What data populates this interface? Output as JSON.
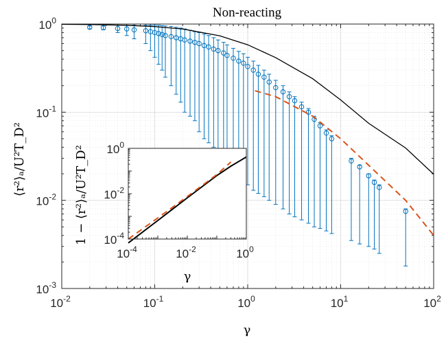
{
  "chart_data": [
    {
      "type": "scatter",
      "title": "Non-reacting",
      "xlabel": "γ",
      "ylabel": "⟨r²⟩ₐ/U²T_D²",
      "xscale": "log",
      "yscale": "log",
      "xlim": [
        0.01,
        100
      ],
      "ylim": [
        0.001,
        1
      ],
      "x_ticks": [
        "10^-2",
        "10^-1",
        "10^0",
        "10^1",
        "10^2"
      ],
      "y_ticks": [
        "10^-3",
        "10^-2",
        "10^-1",
        "10^0"
      ],
      "grid": true,
      "series": [
        {
          "kind": "line",
          "style": "solid",
          "color": "#000000",
          "x": [
            0.01,
            0.02,
            0.05,
            0.1,
            0.2,
            0.5,
            1,
            2,
            5,
            10,
            20,
            50,
            100
          ],
          "y": [
            0.9934,
            0.9868,
            0.9675,
            0.9365,
            0.879,
            0.7358,
            0.582,
            0.4161,
            0.2399,
            0.1378,
            0.0748,
            0.0392,
            0.0198
          ]
        },
        {
          "kind": "line",
          "style": "dashed",
          "color": "#D95319",
          "x": [
            1.2,
            2,
            5,
            10,
            20,
            50,
            100
          ],
          "y": [
            0.175,
            0.15,
            0.09,
            0.05,
            0.025,
            0.01,
            0.004
          ]
        },
        {
          "kind": "errorbar",
          "color": "#0072BD",
          "x": [
            0.02,
            0.028,
            0.04,
            0.05,
            0.06,
            0.08,
            0.09,
            0.1,
            0.11,
            0.12,
            0.13,
            0.15,
            0.17,
            0.19,
            0.21,
            0.24,
            0.27,
            0.3,
            0.34,
            0.38,
            0.43,
            0.48,
            0.55,
            0.6,
            0.7,
            0.8,
            0.9,
            1.0,
            1.15,
            1.3,
            1.5,
            1.7,
            2.0,
            2.4,
            2.8,
            3.2,
            3.8,
            4.5,
            5.2,
            6.0,
            7.0,
            8.0,
            13,
            16,
            20,
            23,
            26,
            50
          ],
          "y": [
            0.92,
            0.91,
            0.89,
            0.88,
            0.86,
            0.84,
            0.82,
            0.8,
            0.78,
            0.76,
            0.74,
            0.72,
            0.7,
            0.68,
            0.66,
            0.64,
            0.62,
            0.6,
            0.57,
            0.55,
            0.52,
            0.5,
            0.47,
            0.44,
            0.41,
            0.38,
            0.36,
            0.33,
            0.3,
            0.27,
            0.25,
            0.22,
            0.19,
            0.17,
            0.15,
            0.135,
            0.115,
            0.1,
            0.083,
            0.07,
            0.058,
            0.05,
            0.028,
            0.024,
            0.019,
            0.016,
            0.014,
            0.0075
          ],
          "lower": [
            0.88,
            0.86,
            0.8,
            0.74,
            0.68,
            0.6,
            0.5,
            0.42,
            0.35,
            0.3,
            0.25,
            0.2,
            0.16,
            0.13,
            0.1,
            0.09,
            0.08,
            0.06,
            0.05,
            0.045,
            0.04,
            0.035,
            0.03,
            0.028,
            0.025,
            0.02,
            0.017,
            0.015,
            0.013,
            0.012,
            0.011,
            0.01,
            0.009,
            0.008,
            0.007,
            0.0065,
            0.006,
            0.0055,
            0.005,
            0.0048,
            0.0045,
            0.0042,
            0.0035,
            0.0032,
            0.003,
            0.0028,
            0.0025,
            0.0018
          ],
          "upper": [
            0.95,
            0.95,
            0.97,
            0.97,
            0.97,
            0.97,
            0.97,
            0.97,
            0.97,
            0.96,
            0.95,
            0.94,
            0.92,
            0.9,
            0.88,
            0.85,
            0.82,
            0.8,
            0.77,
            0.74,
            0.7,
            0.66,
            0.62,
            0.58,
            0.53,
            0.49,
            0.46,
            0.42,
            0.38,
            0.34,
            0.3,
            0.27,
            0.23,
            0.2,
            0.17,
            0.15,
            0.13,
            0.11,
            0.09,
            0.076,
            0.063,
            0.054,
            0.03,
            0.025,
            0.02,
            0.017,
            0.015,
            0.008
          ]
        }
      ]
    },
    {
      "type": "line",
      "xlabel": "γ",
      "ylabel": "1 − ⟨r²⟩ₐ/U²T_D²",
      "xscale": "log",
      "yscale": "log",
      "xlim": [
        0.0001,
        1
      ],
      "ylim": [
        0.0001,
        1
      ],
      "x_ticks": [
        "10^-4",
        "10^-2",
        "10^0"
      ],
      "y_ticks": [
        "10^-4",
        "10^-2",
        "10^0"
      ],
      "grid": false,
      "series": [
        {
          "kind": "line",
          "style": "solid",
          "color": "#000000",
          "x": [
            0.0001,
            0.001,
            0.01,
            0.1,
            0.3,
            0.6,
            1
          ],
          "y": [
            6.7e-05,
            0.00066,
            0.0066,
            0.063,
            0.164,
            0.28,
            0.418
          ]
        },
        {
          "kind": "line",
          "style": "dashed",
          "color": "#D95319",
          "x": [
            0.0001,
            0.001,
            0.01,
            0.1,
            0.3
          ],
          "y": [
            0.0001,
            0.00085,
            0.0075,
            0.07,
            0.25
          ]
        }
      ]
    }
  ]
}
